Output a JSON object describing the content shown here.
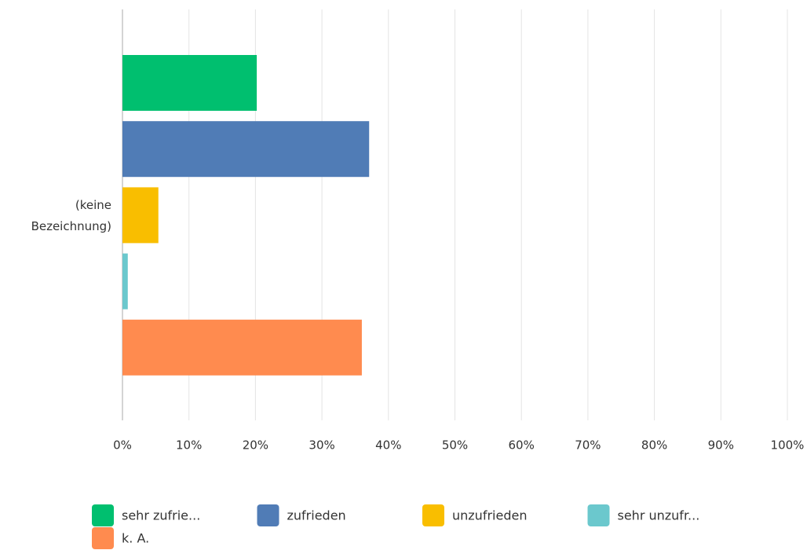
{
  "chart_data": {
    "type": "hbar",
    "categories": [
      "(keine Bezeichnung)"
    ],
    "series": [
      {
        "name": "sehr zufrie...",
        "color": "#00bf6f",
        "values": [
          20.2
        ]
      },
      {
        "name": "zufrieden",
        "color": "#507cb6",
        "values": [
          37.1
        ]
      },
      {
        "name": "unzufrieden",
        "color": "#f9be00",
        "values": [
          5.4
        ]
      },
      {
        "name": "sehr unzufr...",
        "color": "#6bc8cd",
        "values": [
          0.8
        ]
      },
      {
        "name": "k. A.",
        "color": "#ff8b4f",
        "values": [
          36.0
        ]
      }
    ],
    "xlim": [
      0,
      100
    ],
    "xticks": [
      {
        "value": 0,
        "label": "0%"
      },
      {
        "value": 10,
        "label": "10%"
      },
      {
        "value": 20,
        "label": "20%"
      },
      {
        "value": 30,
        "label": "30%"
      },
      {
        "value": 40,
        "label": "40%"
      },
      {
        "value": 50,
        "label": "50%"
      },
      {
        "value": 60,
        "label": "60%"
      },
      {
        "value": 70,
        "label": "70%"
      },
      {
        "value": 80,
        "label": "80%"
      },
      {
        "value": 90,
        "label": "90%"
      },
      {
        "value": 100,
        "label": "100%"
      }
    ],
    "grid": true
  }
}
